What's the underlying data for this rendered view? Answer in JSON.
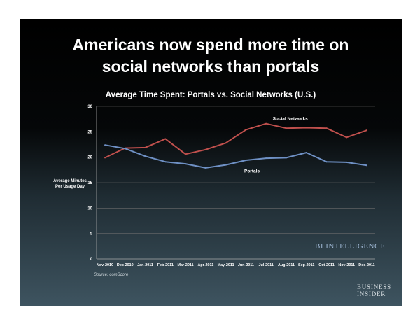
{
  "headline": {
    "line1": "Americans now spend more time on",
    "line2": "social networks than portals"
  },
  "chart_data": {
    "type": "line",
    "title": "Average Time Spent: Portals vs. Social Networks (U.S.)",
    "ylabel": "Average Minutes Per Usage Day",
    "ylabel_line1": "Average Minutes",
    "ylabel_line2": "Per Usage Day",
    "xlabel": "",
    "ylim": [
      0,
      30
    ],
    "yticks": [
      "0",
      "5",
      "10",
      "15",
      "20",
      "25",
      "30"
    ],
    "grid": true,
    "categories": [
      "Nov-2010",
      "Dec-2010",
      "Jan-2011",
      "Feb-2011",
      "Mar-2011",
      "Apr-2011",
      "May-2011",
      "Jun-2011",
      "Jul-2011",
      "Aug-2011",
      "Sep-2011",
      "Oct-2011",
      "Nov-2011",
      "Dec-2011"
    ],
    "series": [
      {
        "name": "Social Networks",
        "color": "#c0504d",
        "values": [
          19.9,
          21.8,
          21.9,
          23.6,
          20.6,
          21.5,
          22.8,
          25.4,
          26.6,
          25.7,
          25.8,
          25.7,
          23.9,
          25.3
        ]
      },
      {
        "name": "Portals",
        "color": "#6f91c5",
        "values": [
          22.4,
          21.7,
          20.2,
          19.1,
          18.7,
          17.9,
          18.5,
          19.4,
          19.8,
          19.9,
          20.9,
          19.1,
          19.0,
          18.4
        ]
      }
    ]
  },
  "source": "Source: comScore",
  "watermark": "BI INTELLIGENCE",
  "logo": {
    "line1": "BUSINESS",
    "line2": "INSIDER"
  }
}
